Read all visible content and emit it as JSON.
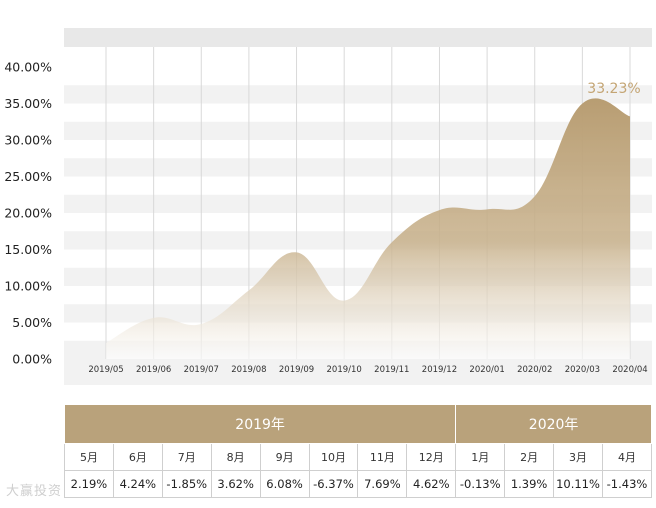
{
  "chart_data": {
    "type": "area",
    "x": [
      "2019/05",
      "2019/06",
      "2019/07",
      "2019/08",
      "2019/09",
      "2019/10",
      "2019/11",
      "2019/12",
      "2020/01",
      "2020/02",
      "2020/03",
      "2020/04"
    ],
    "values": [
      2.19,
      5.63,
      4.8,
      9.4,
      14.6,
      8.0,
      16.0,
      20.4,
      20.5,
      22.3,
      35.0,
      33.23
    ],
    "peak_label": "33.23%",
    "ylim": [
      0,
      40
    ],
    "yticks": [
      "0.00%",
      "5.00%",
      "10.00%",
      "15.00%",
      "20.00%",
      "25.00%",
      "30.00%",
      "35.00%",
      "40.00%"
    ],
    "grid": "horizontal-bands",
    "colors": {
      "fill_top": "#b89d72",
      "fill_bottom": "#ffffff",
      "band": "#f2f2f2",
      "header_bar": "#e8e8e8"
    }
  },
  "returns_table": {
    "years": [
      {
        "label": "2019年",
        "span": 8
      },
      {
        "label": "2020年",
        "span": 4
      }
    ],
    "months": [
      "5月",
      "6月",
      "7月",
      "8月",
      "9月",
      "10月",
      "11月",
      "12月",
      "1月",
      "2月",
      "3月",
      "4月"
    ],
    "values": [
      "2.19%",
      "4.24%",
      "-1.85%",
      "3.62%",
      "6.08%",
      "-6.37%",
      "7.69%",
      "4.62%",
      "-0.13%",
      "1.39%",
      "10.11%",
      "-1.43%"
    ],
    "header_color": "#b9a27b"
  },
  "watermark": "大赢投资"
}
